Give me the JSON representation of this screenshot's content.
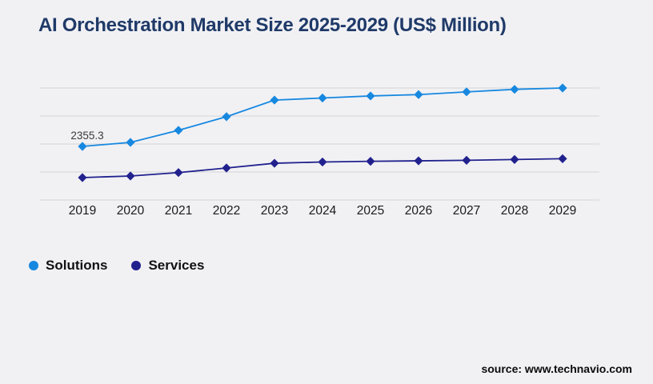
{
  "page": {
    "background": "#f1f1f4"
  },
  "header": {
    "title": "AI Orchestration Market Size 2025-2029 (US$ Million)",
    "title_color": "#1f3a68"
  },
  "footer": {
    "source": "source: www.technavio.com"
  },
  "chart_data": {
    "type": "line",
    "title": "AI Orchestration Market Size 2025-2029 (US$ Million)",
    "categories": [
      "2019",
      "2020",
      "2021",
      "2022",
      "2023",
      "2024",
      "2025",
      "2026",
      "2027",
      "2028",
      "2029"
    ],
    "series": [
      {
        "name": "Solutions",
        "color": "#1788e0",
        "marker": "diamond",
        "values": [
          2355.3,
          2530,
          3060,
          3660,
          4390,
          4480,
          4570,
          4630,
          4750,
          4860,
          4920
        ],
        "first_point_label": "2355.3"
      },
      {
        "name": "Services",
        "color": "#21218e",
        "marker": "diamond",
        "values": [
          985,
          1055,
          1205,
          1405,
          1615,
          1670,
          1700,
          1720,
          1745,
          1780,
          1815
        ]
      }
    ],
    "ylim": [
      0,
      4920
    ],
    "gridline_count": 5,
    "grid_color": "#d5d5d8",
    "grid_on": true,
    "y_axis_labels_visible": false,
    "legend_position": "bottom-left",
    "xlabel": "",
    "ylabel": "",
    "point_label_color": "#3a3a3a"
  }
}
